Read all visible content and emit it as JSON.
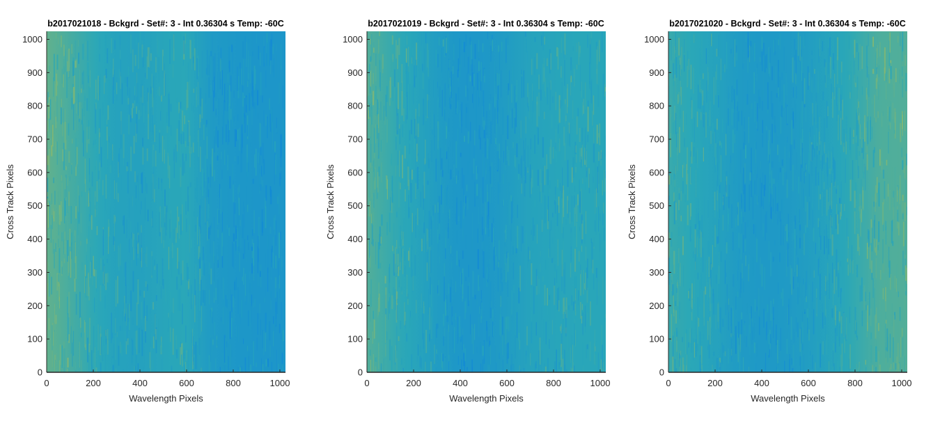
{
  "figure": {
    "background": "#ffffff"
  },
  "colors": {
    "low": "#1289d6",
    "mid": "#2aa7b8",
    "high": "#a7be57",
    "axis": "#262626"
  },
  "chart_data": [
    {
      "type": "heatmap",
      "title": "b2017021018 - Bckgrd - Set#: 3 - Int 0.36304 s Temp: -60C",
      "xlabel": "Wavelength Pixels",
      "ylabel": "Cross Track Pixels",
      "xlim": [
        0,
        1024
      ],
      "ylim": [
        0,
        1024
      ],
      "xticks": [
        0,
        200,
        400,
        600,
        800,
        1000
      ],
      "yticks": [
        0,
        100,
        200,
        300,
        400,
        500,
        600,
        700,
        800,
        900,
        1000
      ],
      "colormap": "parula",
      "column_profile": {
        "x": [
          0,
          100,
          200,
          300,
          400,
          500,
          600,
          700,
          800,
          900,
          1024
        ],
        "level": [
          0.72,
          0.62,
          0.52,
          0.42,
          0.4,
          0.46,
          0.5,
          0.3,
          0.24,
          0.22,
          0.22
        ]
      }
    },
    {
      "type": "heatmap",
      "title": "b2017021019 - Bckgrd - Set#: 3 - Int 0.36304 s Temp: -60C",
      "xlabel": "Wavelength Pixels",
      "ylabel": "Cross Track Pixels",
      "xlim": [
        0,
        1024
      ],
      "ylim": [
        0,
        1024
      ],
      "xticks": [
        0,
        200,
        400,
        600,
        800,
        1000
      ],
      "yticks": [
        0,
        100,
        200,
        300,
        400,
        500,
        600,
        700,
        800,
        900,
        1000
      ],
      "colormap": "parula",
      "column_profile": {
        "x": [
          0,
          100,
          200,
          300,
          400,
          500,
          600,
          700,
          800,
          900,
          1024
        ],
        "level": [
          0.66,
          0.56,
          0.46,
          0.32,
          0.24,
          0.24,
          0.32,
          0.42,
          0.46,
          0.48,
          0.48
        ]
      }
    },
    {
      "type": "heatmap",
      "title": "b2017021020 - Bckgrd - Set#: 3 - Int 0.36304 s Temp: -60C",
      "xlabel": "Wavelength Pixels",
      "ylabel": "Cross Track Pixels",
      "xlim": [
        0,
        1024
      ],
      "ylim": [
        0,
        1024
      ],
      "xticks": [
        0,
        200,
        400,
        600,
        800,
        1000
      ],
      "yticks": [
        0,
        100,
        200,
        300,
        400,
        500,
        600,
        700,
        800,
        900,
        1000
      ],
      "colormap": "parula",
      "column_profile": {
        "x": [
          0,
          100,
          200,
          300,
          400,
          500,
          600,
          700,
          800,
          900,
          1024
        ],
        "level": [
          0.56,
          0.5,
          0.42,
          0.3,
          0.26,
          0.28,
          0.34,
          0.44,
          0.54,
          0.64,
          0.66
        ]
      }
    }
  ]
}
